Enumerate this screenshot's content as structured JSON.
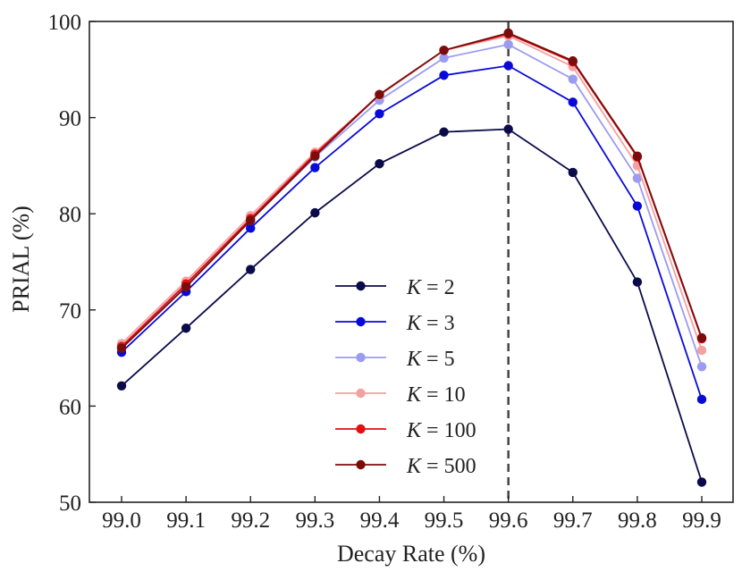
{
  "chart_data": {
    "type": "line",
    "xlabel": "Decay Rate (%)",
    "ylabel": "PRIAL (%)",
    "x": [
      99.0,
      99.1,
      99.2,
      99.3,
      99.4,
      99.5,
      99.6,
      99.7,
      99.8,
      99.9
    ],
    "xtick_labels": [
      "99.0",
      "99.1",
      "99.2",
      "99.3",
      "99.4",
      "99.5",
      "99.6",
      "99.7",
      "99.8",
      "99.9"
    ],
    "ylim": [
      50,
      100
    ],
    "yticks": [
      50,
      60,
      70,
      80,
      90,
      100
    ],
    "ytick_labels": [
      "50",
      "60",
      "70",
      "80",
      "90",
      "100"
    ],
    "vline": {
      "x": 99.6,
      "style": "dashed"
    },
    "legend_position": "center",
    "series": [
      {
        "name": "K = 2",
        "k_label": "K",
        "k_value": "2",
        "color": "#0b0b4a",
        "values": [
          62.1,
          68.1,
          74.2,
          80.1,
          85.2,
          88.5,
          88.8,
          84.3,
          72.9,
          52.1
        ]
      },
      {
        "name": "K = 3",
        "k_label": "K",
        "k_value": "3",
        "color": "#0a0ad8",
        "values": [
          65.6,
          71.9,
          78.5,
          84.8,
          90.4,
          94.4,
          95.4,
          91.6,
          80.8,
          60.7
        ]
      },
      {
        "name": "K = 5",
        "k_label": "K",
        "k_value": "5",
        "color": "#9b9bf2",
        "values": [
          66.1,
          72.5,
          79.3,
          85.9,
          91.8,
          96.2,
          97.6,
          94.0,
          83.7,
          64.1
        ]
      },
      {
        "name": "K = 10",
        "k_label": "K",
        "k_value": "10",
        "color": "#f3a1a1",
        "values": [
          66.5,
          73.0,
          79.8,
          86.4,
          92.3,
          97.0,
          98.5,
          95.3,
          85.0,
          65.8
        ]
      },
      {
        "name": "K = 100",
        "k_label": "K",
        "k_value": "100",
        "color": "#e31010",
        "values": [
          66.2,
          72.7,
          79.5,
          86.2,
          92.4,
          97.0,
          98.7,
          95.8,
          85.9,
          67.0
        ]
      },
      {
        "name": "K = 500",
        "k_label": "K",
        "k_value": "500",
        "color": "#7a0c0c",
        "values": [
          66.0,
          72.4,
          79.3,
          86.0,
          92.4,
          97.0,
          98.8,
          95.9,
          86.0,
          67.1
        ]
      }
    ]
  }
}
